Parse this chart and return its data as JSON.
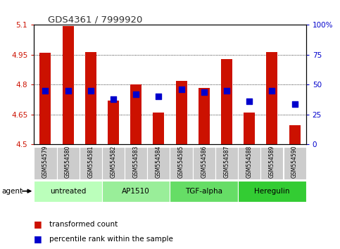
{
  "title": "GDS4361 / 7999920",
  "samples": [
    "GSM554579",
    "GSM554580",
    "GSM554581",
    "GSM554582",
    "GSM554583",
    "GSM554584",
    "GSM554585",
    "GSM554586",
    "GSM554587",
    "GSM554588",
    "GSM554589",
    "GSM554590"
  ],
  "red_values": [
    4.96,
    5.095,
    4.965,
    4.72,
    4.8,
    4.66,
    4.82,
    4.785,
    4.93,
    4.66,
    4.965,
    4.595
  ],
  "blue_pct": [
    45,
    45,
    45,
    38,
    42,
    40,
    46,
    44,
    45,
    36,
    45,
    34
  ],
  "ylim_left": [
    4.5,
    5.1
  ],
  "ylim_right": [
    0,
    100
  ],
  "yticks_left": [
    4.5,
    4.65,
    4.8,
    4.95,
    5.1
  ],
  "yticks_right": [
    0,
    25,
    50,
    75,
    100
  ],
  "ytick_labels_left": [
    "4.5",
    "4.65",
    "4.8",
    "4.95",
    "5.1"
  ],
  "ytick_labels_right": [
    "0",
    "25",
    "50",
    "75",
    "100%"
  ],
  "groups": [
    {
      "label": "untreated",
      "start": 0,
      "end": 3,
      "color": "#bbffbb"
    },
    {
      "label": "AP1510",
      "start": 3,
      "end": 6,
      "color": "#99ee99"
    },
    {
      "label": "TGF-alpha",
      "start": 6,
      "end": 9,
      "color": "#66dd66"
    },
    {
      "label": "Heregulin",
      "start": 9,
      "end": 12,
      "color": "#33cc33"
    }
  ],
  "bar_color": "#cc1100",
  "dot_color": "#0000cc",
  "bar_width": 0.5,
  "background_color": "#ffffff",
  "grid_color": "#000000",
  "left_tick_color": "#cc1100",
  "right_tick_color": "#0000cc",
  "sample_bg": "#cccccc"
}
